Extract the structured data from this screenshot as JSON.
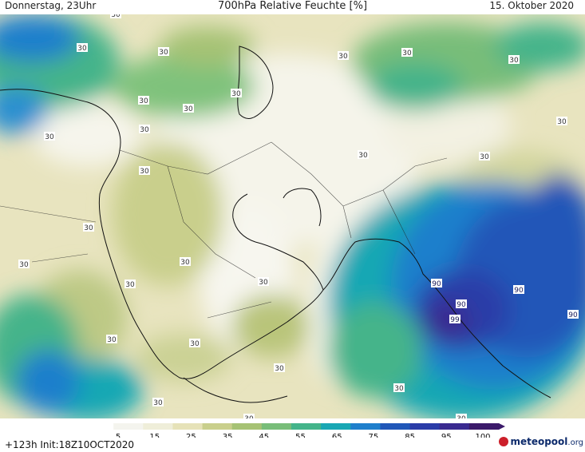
{
  "header": {
    "valid_time": "Donnerstag, 23Uhr",
    "title": "700hPa Relative Feuchte [%]",
    "date": "15. Oktober 2020"
  },
  "footer": {
    "run_info": "+123h Init:18Z10OCT2020",
    "brand_name": "meteopool",
    "brand_ext": ".org"
  },
  "colorbar": {
    "labels": [
      "5",
      "15",
      "25",
      "35",
      "45",
      "55",
      "65",
      "75",
      "85",
      "95",
      "100"
    ],
    "colors": [
      "#ffffff",
      "#f4f4ee",
      "#efeed9",
      "#e6e2b8",
      "#c9cf8c",
      "#a6c274",
      "#78bd79",
      "#44b48a",
      "#19a7b4",
      "#1f7fcc",
      "#2057b8",
      "#2a3ca8",
      "#3a2a90",
      "#3b1a6a"
    ]
  },
  "contour_labels": [
    {
      "text": "30",
      "value": 30
    },
    {
      "text": "90",
      "value": 90
    },
    {
      "text": "99",
      "value": 99
    }
  ],
  "map_labels": [
    "30",
    "30",
    "30",
    "30",
    "30",
    "30",
    "30",
    "30",
    "30",
    "30",
    "30",
    "30",
    "30",
    "30",
    "30",
    "30",
    "30",
    "30",
    "30",
    "30",
    "30",
    "30",
    "30",
    "30",
    "30",
    "30",
    "30",
    "90",
    "90",
    "90",
    "90",
    "99"
  ]
}
